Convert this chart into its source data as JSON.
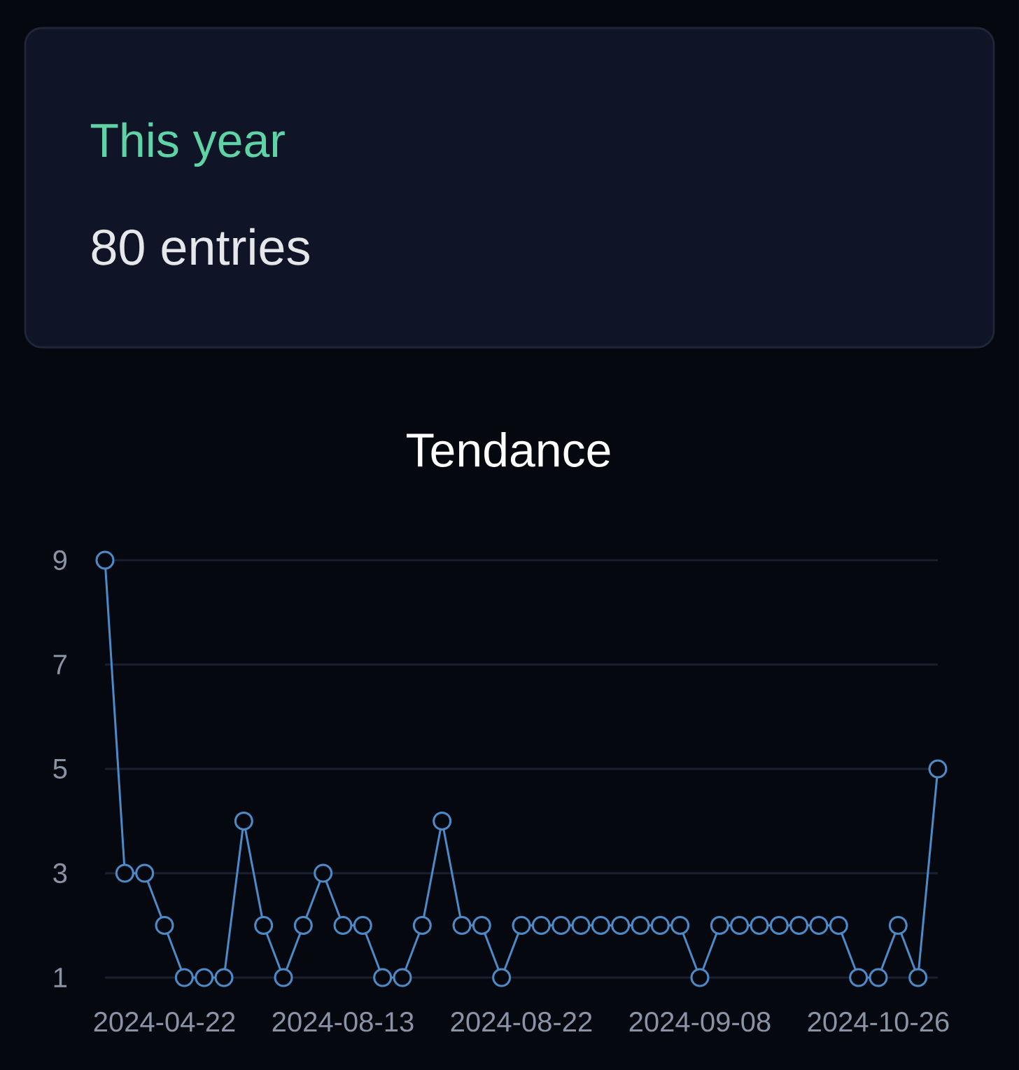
{
  "chart_data": [
    {
      "type": "other",
      "title": "This year",
      "annotations": [
        "80 entries"
      ]
    },
    {
      "type": "line",
      "title": "Tendance",
      "categories": [
        null,
        null,
        null,
        "2024-04-22",
        null,
        null,
        null,
        null,
        null,
        null,
        null,
        null,
        "2024-08-13",
        null,
        null,
        null,
        null,
        null,
        null,
        null,
        null,
        "2024-08-22",
        null,
        null,
        null,
        null,
        null,
        null,
        null,
        null,
        "2024-09-08",
        null,
        null,
        null,
        null,
        null,
        null,
        null,
        null,
        "2024-10-26",
        null,
        null,
        null
      ],
      "values": [
        9,
        3,
        3,
        2,
        1,
        1,
        1,
        4,
        2,
        1,
        2,
        3,
        2,
        2,
        1,
        1,
        2,
        4,
        2,
        2,
        1,
        2,
        2,
        2,
        2,
        2,
        2,
        2,
        2,
        2,
        1,
        2,
        2,
        2,
        2,
        2,
        2,
        2,
        1,
        1,
        2,
        1,
        5
      ],
      "color": "#4d8ac8",
      "ylim": [
        1,
        9
      ],
      "yticks": [
        1,
        3,
        5,
        7,
        9
      ],
      "grid": "y",
      "marker": "circle",
      "line_style": "solid"
    }
  ]
}
